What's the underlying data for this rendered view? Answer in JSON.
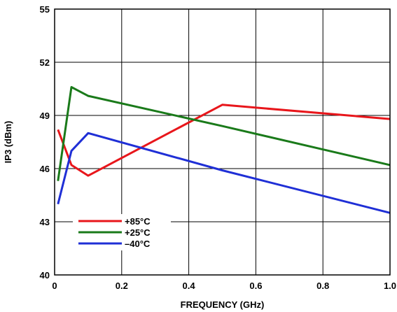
{
  "chart_data": {
    "type": "line",
    "xlabel": "FREQUENCY (GHz)",
    "ylabel": "IP3 (dBm)",
    "xlim": [
      0,
      1.0
    ],
    "ylim": [
      40,
      55
    ],
    "x_ticks": [
      0,
      0.2,
      0.4,
      0.6,
      0.8,
      1.0
    ],
    "x_tick_labels": [
      "0",
      "0.2",
      "0.4",
      "0.6",
      "0.8",
      "1.0"
    ],
    "y_ticks": [
      40,
      43,
      46,
      49,
      52,
      55
    ],
    "y_tick_labels": [
      "40",
      "43",
      "46",
      "49",
      "52",
      "55"
    ],
    "grid": true,
    "legend_position": "bottom-left",
    "series": [
      {
        "name": "+85°C",
        "color": "#e8161b",
        "x": [
          0.01,
          0.05,
          0.1,
          0.5,
          1.0
        ],
        "y": [
          48.2,
          46.2,
          45.6,
          49.6,
          48.8
        ]
      },
      {
        "name": "+25°C",
        "color": "#1a7a1a",
        "x": [
          0.01,
          0.05,
          0.1,
          0.5,
          1.0
        ],
        "y": [
          45.3,
          50.6,
          50.1,
          48.4,
          46.2
        ]
      },
      {
        "name": "–40°C",
        "color": "#1f2fd6",
        "x": [
          0.01,
          0.05,
          0.1,
          0.5,
          1.0
        ],
        "y": [
          44.0,
          47.0,
          48.0,
          45.9,
          43.5
        ]
      }
    ]
  }
}
